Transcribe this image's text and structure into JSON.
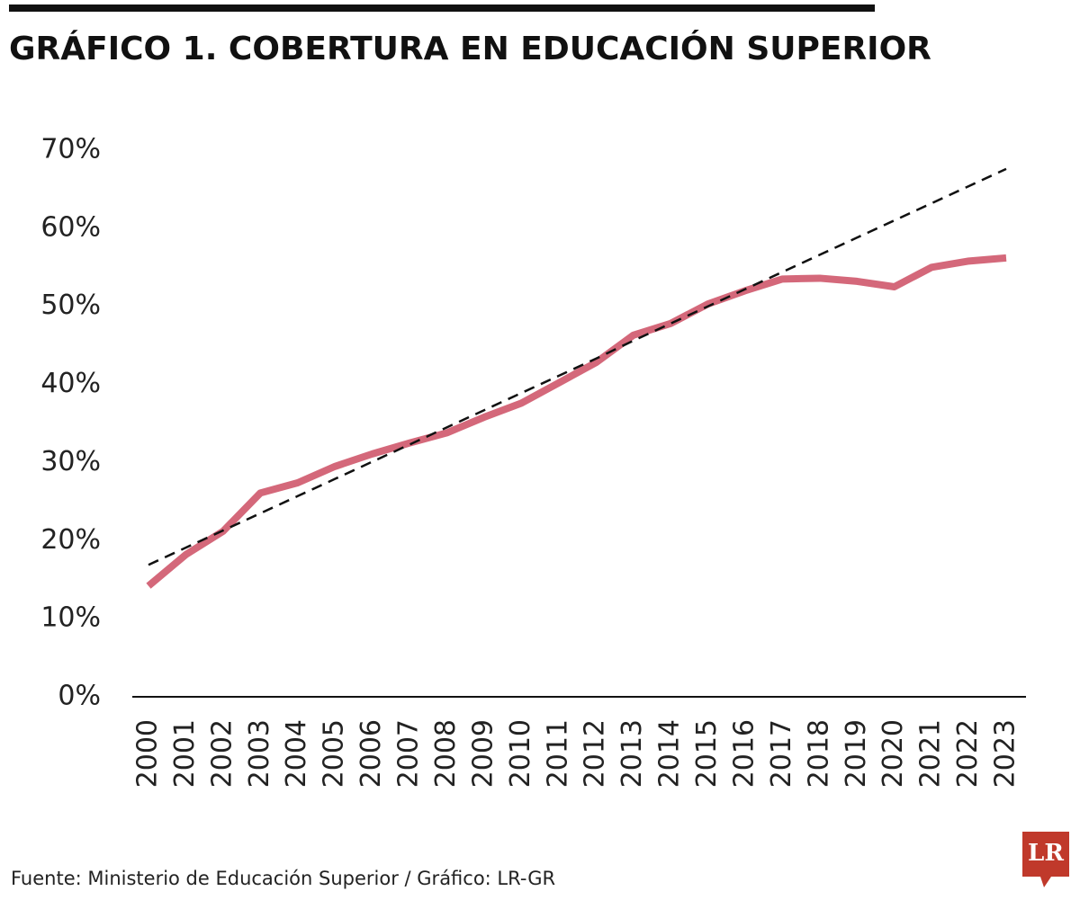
{
  "chart_data": {
    "type": "line",
    "title": "GRÁFICO 1. COBERTURA EN EDUCACIÓN SUPERIOR",
    "source": "Fuente: Ministerio de Educación Superior  / Gráfico: LR-GR",
    "logo": "LR",
    "categories": [
      "2000",
      "2001",
      "2002",
      "2003",
      "2004",
      "2005",
      "2006",
      "2007",
      "2008",
      "2009",
      "2010",
      "2011",
      "2012",
      "2013",
      "2014",
      "2015",
      "2016",
      "2017",
      "2018",
      "2019",
      "2020",
      "2021",
      "2022",
      "2023"
    ],
    "series": [
      {
        "color": "#d4687a",
        "style": "solid",
        "values": [
          14.2,
          18.2,
          21.2,
          26.1,
          27.4,
          29.5,
          31.1,
          32.5,
          33.8,
          35.8,
          37.6,
          40.2,
          42.8,
          46.3,
          47.8,
          50.3,
          52.0,
          53.5,
          53.6,
          53.2,
          52.5,
          55.0,
          55.8,
          56.2
        ]
      },
      {
        "color": "#111111",
        "style": "dashed",
        "values": [
          16.9,
          19.1,
          21.3,
          23.5,
          25.7,
          27.9,
          30.1,
          32.3,
          34.5,
          36.7,
          38.9,
          41.1,
          43.3,
          45.6,
          47.8,
          50.0,
          52.2,
          54.4,
          56.6,
          58.8,
          61.0,
          63.2,
          65.4,
          67.6
        ]
      }
    ],
    "ylim": [
      0,
      70
    ],
    "yticks": [
      {
        "value": 0,
        "label": "0%"
      },
      {
        "value": 10,
        "label": "10%"
      },
      {
        "value": 20,
        "label": "20%"
      },
      {
        "value": 30,
        "label": "30%"
      },
      {
        "value": 40,
        "label": "40%"
      },
      {
        "value": 50,
        "label": "50%"
      },
      {
        "value": 60,
        "label": "60%"
      },
      {
        "value": 70,
        "label": "70%"
      }
    ],
    "grid": false
  }
}
